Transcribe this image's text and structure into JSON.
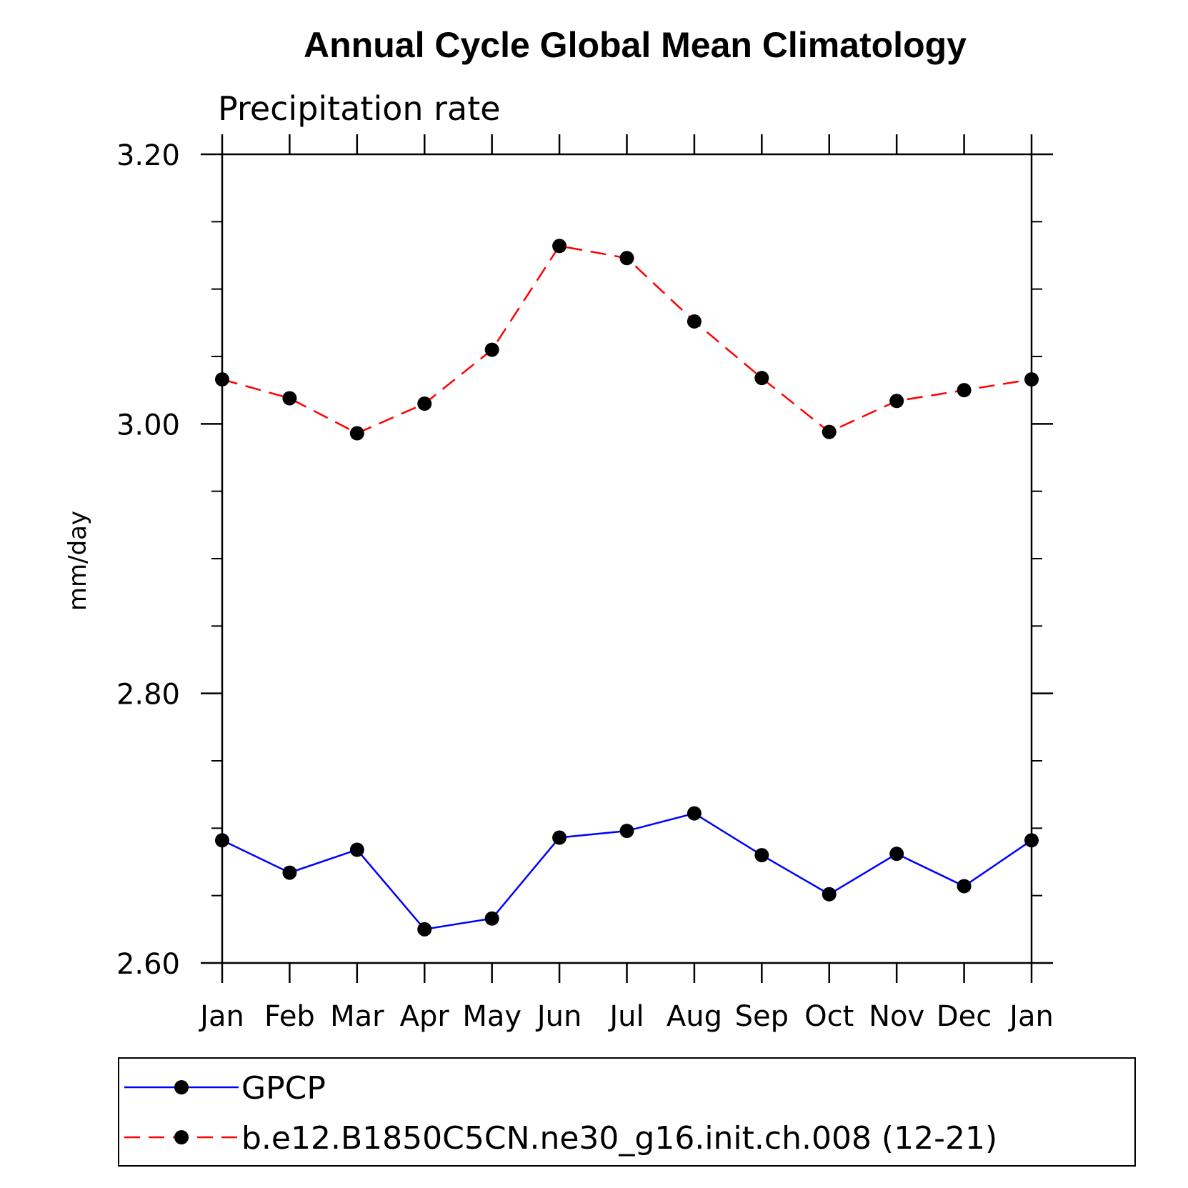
{
  "chart_data": {
    "type": "line",
    "title": "Annual Cycle Global Mean Climatology",
    "subtitle": "Precipitation rate",
    "xlabel": "",
    "ylabel": "mm/day",
    "categories": [
      "Jan",
      "Feb",
      "Mar",
      "Apr",
      "May",
      "Jun",
      "Jul",
      "Aug",
      "Sep",
      "Oct",
      "Nov",
      "Dec",
      "Jan"
    ],
    "ylim": [
      2.6,
      3.2
    ],
    "yticks": [
      "2.60",
      "2.80",
      "3.00",
      "3.20"
    ],
    "ytick_values": [
      2.6,
      2.8,
      3.0,
      3.2
    ],
    "grid": false,
    "legend_placement": "bottom",
    "series": [
      {
        "name": "GPCP",
        "color": "#0000ff",
        "style": "solid",
        "marker": "filled-circle",
        "values": [
          2.691,
          2.667,
          2.684,
          2.625,
          2.633,
          2.693,
          2.698,
          2.711,
          2.68,
          2.651,
          2.681,
          2.657,
          2.691
        ]
      },
      {
        "name": "b.e12.B1850C5CN.ne30_g16.init.ch.008 (12-21)",
        "color": "#ff0000",
        "style": "dashed",
        "marker": "filled-circle",
        "values": [
          3.033,
          3.019,
          2.993,
          3.015,
          3.055,
          3.132,
          3.123,
          3.076,
          3.034,
          2.994,
          3.017,
          3.025,
          3.033
        ]
      }
    ]
  }
}
